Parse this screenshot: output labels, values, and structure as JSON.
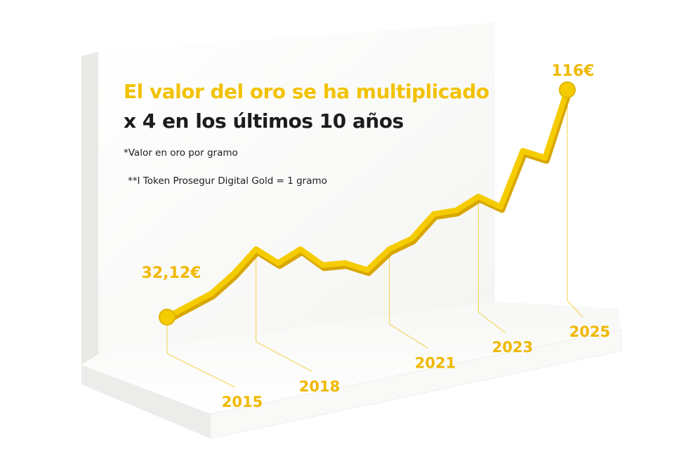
{
  "chart_data": {
    "type": "line",
    "title": "El valor del oro se ha multiplicado",
    "subtitle": "x 4 en los últimos 10 años",
    "annotations": [
      "*Valor en oro por gramo",
      "**I Token Prosegur Digital Gold = 1 gramo"
    ],
    "categories": [
      "2015",
      null,
      null,
      null,
      "2018",
      null,
      null,
      null,
      null,
      null,
      "2021",
      null,
      null,
      null,
      "2023",
      null,
      null,
      null,
      "2025"
    ],
    "values": [
      32.12,
      36.5,
      40.9,
      48.2,
      57.2,
      52.1,
      57.2,
      51.3,
      52.1,
      49.5,
      57.2,
      61.1,
      70.2,
      71.5,
      76.6,
      72.8,
      93.5,
      90.9,
      116
    ],
    "value_labels": [
      "32,12€",
      null,
      null,
      null,
      null,
      null,
      null,
      null,
      null,
      null,
      null,
      null,
      null,
      null,
      null,
      null,
      null,
      null,
      "116€"
    ],
    "color": "#f5cc00"
  }
}
